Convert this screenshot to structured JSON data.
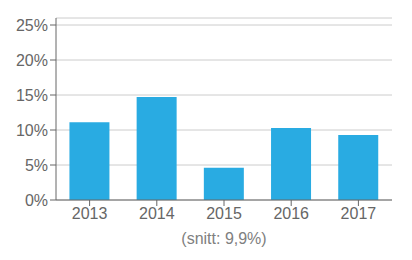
{
  "chart_data": {
    "type": "bar",
    "categories": [
      "2013",
      "2014",
      "2015",
      "2016",
      "2017"
    ],
    "values": [
      0.111,
      0.147,
      0.046,
      0.103,
      0.093
    ],
    "color": "#29ABE2",
    "xlabel": "(snitt: 9,9%)",
    "ylim": [
      0,
      0.26
    ],
    "yticks": [
      {
        "value": 0,
        "label": "0%"
      },
      {
        "value": 0.05,
        "label": "5%"
      },
      {
        "value": 0.1,
        "label": "10%"
      },
      {
        "value": 0.15,
        "label": "15%"
      },
      {
        "value": 0.2,
        "label": "20%"
      },
      {
        "value": 0.25,
        "label": "25%"
      }
    ],
    "grid": true
  }
}
